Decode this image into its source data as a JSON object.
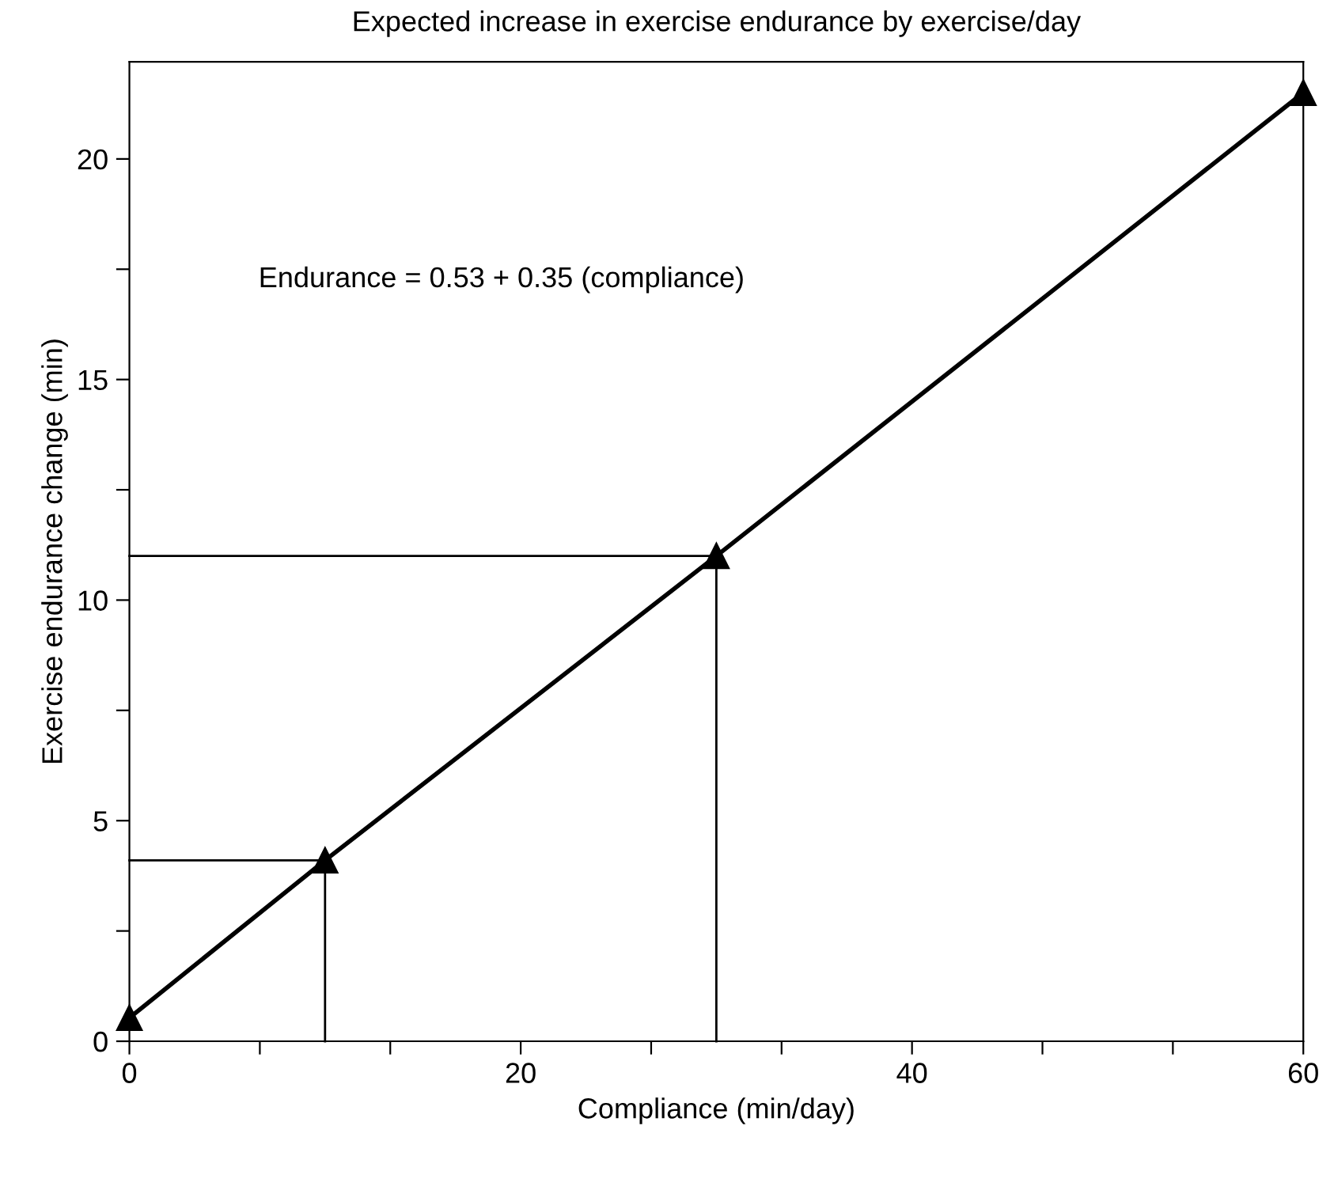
{
  "chart_data": {
    "type": "line",
    "title": "Expected increase in exercise endurance by exercise/day",
    "xlabel": "Compliance (min/day)",
    "ylabel": "Exercise endurance change (min)",
    "annotations": [
      "Endurance = 0.53 + 0.35 (compliance)"
    ],
    "x": [
      0,
      10,
      30,
      60
    ],
    "series": [
      {
        "color": "#000000",
        "values": [
          0.53,
          4.1,
          11.0,
          21.5
        ],
        "marker": "triangle",
        "line_style": "solid"
      },
      {
        "type": "line",
        "color": "#000000",
        "x": [
          0,
          10,
          10
        ],
        "values": [
          4.1,
          4.1,
          0
        ],
        "marker": "none",
        "line_style": "solid"
      },
      {
        "type": "line",
        "color": "#000000",
        "x": [
          0,
          30,
          30
        ],
        "values": [
          11.0,
          11.0,
          0
        ],
        "marker": "none",
        "line_style": "solid"
      }
    ],
    "xlim": [
      0,
      60
    ],
    "ylim": [
      0,
      22.2
    ],
    "xticks": [
      0,
      {
        "value": 6.667,
        "label": null
      },
      {
        "value": 13.333,
        "label": null
      },
      20,
      {
        "value": 26.667,
        "label": null
      },
      {
        "value": 33.333,
        "label": null
      },
      40,
      {
        "value": 46.667,
        "label": null
      },
      {
        "value": 53.333,
        "label": null
      },
      60
    ],
    "yticks": [
      0,
      {
        "value": 2.5,
        "label": null
      },
      5,
      {
        "value": 7.5,
        "label": null
      },
      10,
      {
        "value": 12.5,
        "label": null
      },
      15,
      {
        "value": 17.5,
        "label": null
      },
      20
    ],
    "legend": false
  }
}
